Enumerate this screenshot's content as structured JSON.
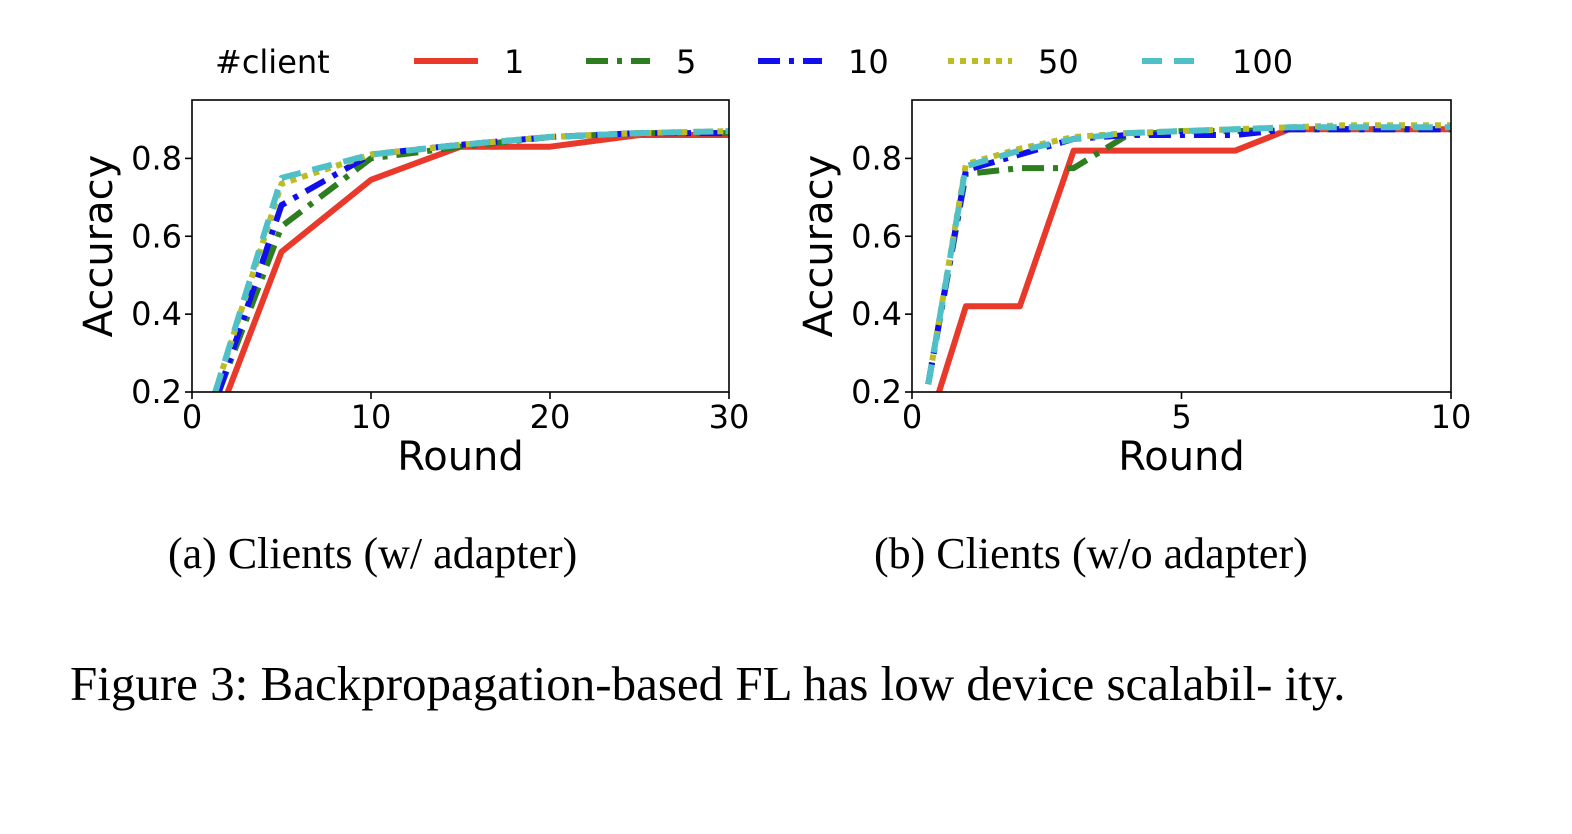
{
  "legend": {
    "title": "#client"
  },
  "chart_data": [
    {
      "type": "line",
      "subcaption": "(a) Clients (w/ adapter)",
      "xlabel": "Round",
      "ylabel": "Accuracy",
      "xlim": [
        0,
        30
      ],
      "ylim": [
        0.2,
        0.95
      ],
      "xticks": [
        0,
        10,
        20,
        30
      ],
      "yticks": [
        0.2,
        0.4,
        0.6,
        0.8
      ],
      "grid": false,
      "legend_position": "top (shared, above both plots)",
      "series": [
        {
          "name": "1",
          "color": "#e8392a",
          "style": "solid",
          "points": [
            [
              2,
              0.2
            ],
            [
              5,
              0.56
            ],
            [
              10,
              0.745
            ],
            [
              15,
              0.83
            ],
            [
              20,
              0.83
            ],
            [
              25,
              0.86
            ],
            [
              30,
              0.86
            ]
          ]
        },
        {
          "name": "5",
          "color": "#2e7d20",
          "style": "dashdot",
          "points": [
            [
              1.5,
              0.2
            ],
            [
              5,
              0.625
            ],
            [
              10,
              0.8
            ],
            [
              15,
              0.83
            ],
            [
              20,
              0.855
            ],
            [
              25,
              0.865
            ],
            [
              30,
              0.865
            ]
          ]
        },
        {
          "name": "10",
          "color": "#1010ee",
          "style": "dashdot",
          "points": [
            [
              1.5,
              0.2
            ],
            [
              5,
              0.68
            ],
            [
              10,
              0.81
            ],
            [
              15,
              0.835
            ],
            [
              20,
              0.855
            ],
            [
              25,
              0.865
            ],
            [
              30,
              0.865
            ]
          ]
        },
        {
          "name": "50",
          "color": "#bcbd22",
          "style": "dotted",
          "points": [
            [
              1.3,
              0.2
            ],
            [
              5,
              0.735
            ],
            [
              10,
              0.81
            ],
            [
              15,
              0.835
            ],
            [
              20,
              0.855
            ],
            [
              25,
              0.865
            ],
            [
              30,
              0.87
            ]
          ]
        },
        {
          "name": "100",
          "color": "#4fbfc8",
          "style": "dashed",
          "points": [
            [
              1.3,
              0.2
            ],
            [
              5,
              0.75
            ],
            [
              10,
              0.81
            ],
            [
              15,
              0.835
            ],
            [
              20,
              0.855
            ],
            [
              25,
              0.865
            ],
            [
              30,
              0.87
            ]
          ]
        }
      ]
    },
    {
      "type": "line",
      "subcaption": "(b) Clients (w/o adapter)",
      "xlabel": "Round",
      "ylabel": "Accuracy",
      "xlim": [
        0,
        10
      ],
      "ylim": [
        0.2,
        0.95
      ],
      "xticks": [
        0,
        5,
        10
      ],
      "yticks": [
        0.2,
        0.4,
        0.6,
        0.8
      ],
      "grid": false,
      "series": [
        {
          "name": "1",
          "color": "#e8392a",
          "style": "solid",
          "points": [
            [
              0.5,
              0.2
            ],
            [
              1,
              0.42
            ],
            [
              2,
              0.42
            ],
            [
              3,
              0.82
            ],
            [
              4,
              0.82
            ],
            [
              5,
              0.82
            ],
            [
              6,
              0.82
            ],
            [
              7,
              0.875
            ],
            [
              8,
              0.875
            ],
            [
              9,
              0.875
            ],
            [
              10,
              0.875
            ]
          ]
        },
        {
          "name": "5",
          "color": "#2e7d20",
          "style": "dashdot",
          "points": [
            [
              0.3,
              0.22
            ],
            [
              1,
              0.76
            ],
            [
              2,
              0.775
            ],
            [
              3,
              0.775
            ],
            [
              4,
              0.86
            ],
            [
              5,
              0.87
            ],
            [
              6,
              0.87
            ],
            [
              7,
              0.875
            ],
            [
              8,
              0.875
            ],
            [
              9,
              0.875
            ],
            [
              10,
              0.875
            ]
          ]
        },
        {
          "name": "10",
          "color": "#1010ee",
          "style": "dashdot",
          "points": [
            [
              0.3,
              0.22
            ],
            [
              1,
              0.77
            ],
            [
              2,
              0.81
            ],
            [
              3,
              0.85
            ],
            [
              4,
              0.86
            ],
            [
              5,
              0.86
            ],
            [
              6,
              0.86
            ],
            [
              7,
              0.875
            ],
            [
              8,
              0.875
            ],
            [
              9,
              0.875
            ],
            [
              10,
              0.875
            ]
          ]
        },
        {
          "name": "50",
          "color": "#bcbd22",
          "style": "dotted",
          "points": [
            [
              0.3,
              0.22
            ],
            [
              1,
              0.785
            ],
            [
              2,
              0.825
            ],
            [
              3,
              0.855
            ],
            [
              4,
              0.865
            ],
            [
              5,
              0.87
            ],
            [
              6,
              0.875
            ],
            [
              7,
              0.88
            ],
            [
              8,
              0.885
            ],
            [
              9,
              0.885
            ],
            [
              10,
              0.885
            ]
          ]
        },
        {
          "name": "100",
          "color": "#4fbfc8",
          "style": "dashed",
          "points": [
            [
              0.3,
              0.22
            ],
            [
              1,
              0.78
            ],
            [
              2,
              0.82
            ],
            [
              3,
              0.85
            ],
            [
              4,
              0.865
            ],
            [
              5,
              0.87
            ],
            [
              6,
              0.875
            ],
            [
              7,
              0.88
            ],
            [
              8,
              0.88
            ],
            [
              9,
              0.88
            ],
            [
              10,
              0.88
            ]
          ]
        }
      ]
    }
  ],
  "caption": "Figure 3: Backpropagation-based FL has low device scalabil- ity."
}
